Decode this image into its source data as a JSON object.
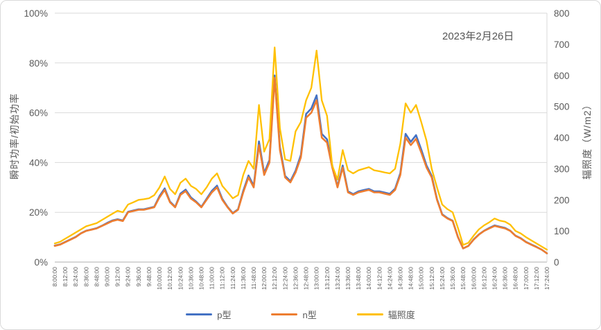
{
  "chart_data": {
    "type": "line",
    "annotation": "2023年2月26日",
    "grid": true,
    "legend_position": "bottom",
    "left_axis": {
      "title": "瞬时功率/初始功率",
      "min": 0,
      "max": 100,
      "unit": "%",
      "tick_labels": [
        "0%",
        "20%",
        "40%",
        "60%",
        "80%",
        "100%"
      ]
    },
    "right_axis": {
      "title": "辐照度（W/m2）",
      "min": 0,
      "max": 800,
      "unit": "W/m2",
      "tick_labels": [
        "0",
        "100",
        "200",
        "300",
        "400",
        "500",
        "600",
        "700",
        "800"
      ]
    },
    "x_tick_labels": [
      "8:00:00",
      "8:12:00",
      "8:24:00",
      "8:36:00",
      "8:48:00",
      "9:00:00",
      "9:12:00",
      "9:24:00",
      "9:36:00",
      "9:48:00",
      "10:00:00",
      "10:12:00",
      "10:24:00",
      "10:36:00",
      "10:48:00",
      "11:00:00",
      "11:12:00",
      "11:24:00",
      "11:36:00",
      "11:48:00",
      "12:00:00",
      "12:12:00",
      "12:24:00",
      "12:36:00",
      "12:48:00",
      "13:00:00",
      "13:12:00",
      "13:24:00",
      "13:36:00",
      "13:48:00",
      "14:00:00",
      "14:12:00",
      "14:24:00",
      "14:36:00",
      "14:48:00",
      "15:00:00",
      "15:12:00",
      "15:24:00",
      "15:36:00",
      "15:48:00",
      "16:00:00",
      "16:12:00",
      "16:24:00",
      "16:36:00",
      "16:48:00",
      "17:00:00",
      "17:12:00",
      "17:24:00"
    ],
    "x": [
      "8:00:00",
      "8:06:00",
      "8:12:00",
      "8:18:00",
      "8:24:00",
      "8:30:00",
      "8:36:00",
      "8:42:00",
      "8:48:00",
      "8:54:00",
      "9:00:00",
      "9:06:00",
      "9:12:00",
      "9:18:00",
      "9:24:00",
      "9:30:00",
      "9:36:00",
      "9:42:00",
      "9:48:00",
      "9:54:00",
      "10:00:00",
      "10:06:00",
      "10:12:00",
      "10:18:00",
      "10:24:00",
      "10:30:00",
      "10:36:00",
      "10:42:00",
      "10:48:00",
      "10:54:00",
      "11:00:00",
      "11:06:00",
      "11:12:00",
      "11:18:00",
      "11:24:00",
      "11:30:00",
      "11:36:00",
      "11:42:00",
      "11:48:00",
      "11:54:00",
      "12:00:00",
      "12:06:00",
      "12:12:00",
      "12:18:00",
      "12:24:00",
      "12:30:00",
      "12:36:00",
      "12:42:00",
      "12:48:00",
      "12:54:00",
      "13:00:00",
      "13:06:00",
      "13:12:00",
      "13:18:00",
      "13:24:00",
      "13:30:00",
      "13:36:00",
      "13:42:00",
      "13:48:00",
      "13:54:00",
      "14:00:00",
      "14:06:00",
      "14:12:00",
      "14:18:00",
      "14:24:00",
      "14:30:00",
      "14:36:00",
      "14:42:00",
      "14:48:00",
      "14:54:00",
      "15:00:00",
      "15:06:00",
      "15:12:00",
      "15:18:00",
      "15:24:00",
      "15:30:00",
      "15:36:00",
      "15:42:00",
      "15:48:00",
      "15:54:00",
      "16:00:00",
      "16:06:00",
      "16:12:00",
      "16:18:00",
      "16:24:00",
      "16:30:00",
      "16:36:00",
      "16:42:00",
      "16:48:00",
      "16:54:00",
      "17:00:00",
      "17:06:00",
      "17:12:00",
      "17:18:00",
      "17:24:00"
    ],
    "series": [
      {
        "name": "p型",
        "axis": "left",
        "unit": "%",
        "color": "#4472C4",
        "stroke_width": 2.6,
        "values": [
          6.6,
          7.1,
          8.1,
          9.1,
          10.1,
          11.6,
          12.6,
          13.1,
          13.6,
          14.6,
          15.7,
          16.7,
          17.2,
          16.7,
          20.2,
          20.7,
          21.2,
          21.2,
          21.7,
          22.2,
          26.5,
          29.6,
          24.3,
          22.2,
          27.5,
          29.1,
          26,
          24.3,
          22.2,
          25.4,
          28.6,
          30.7,
          25.4,
          22.2,
          19.7,
          21.2,
          28.6,
          34.8,
          30.6,
          48.5,
          35.7,
          41,
          75,
          46.2,
          34.6,
          32.5,
          36.7,
          43,
          59.5,
          61.7,
          67,
          51.5,
          49.3,
          38.8,
          30.4,
          38.8,
          28.4,
          27.3,
          28.4,
          28.9,
          29.4,
          28.4,
          28.4,
          27.9,
          27.4,
          29.5,
          35.7,
          51.5,
          48.3,
          51,
          45.2,
          38.8,
          34.6,
          25.3,
          19.2,
          17.7,
          16.6,
          10.1,
          5.5,
          6.5,
          9.1,
          11.1,
          12.6,
          13.7,
          14.7,
          14.2,
          13.7,
          12.6,
          10.6,
          9.6,
          8.1,
          7.1,
          6.1,
          5,
          3.5
        ]
      },
      {
        "name": "n型",
        "axis": "left",
        "unit": "%",
        "color": "#ED7D31",
        "stroke_width": 2.6,
        "values": [
          6.5,
          7,
          8,
          9,
          10,
          11.5,
          12.5,
          13,
          13.5,
          14.5,
          15.5,
          16.5,
          17,
          16.5,
          20,
          20.5,
          21,
          21,
          21.5,
          22,
          26,
          29,
          24,
          22,
          27,
          28.5,
          25.5,
          24,
          22,
          25,
          28,
          30,
          25,
          22,
          19.5,
          21,
          28,
          34,
          30,
          47,
          35,
          40,
          74,
          45,
          34,
          32,
          36,
          42,
          58,
          60,
          65,
          50,
          48,
          38,
          30,
          38,
          28,
          27,
          28,
          28.5,
          29,
          28,
          28,
          27.5,
          27,
          29,
          35,
          50,
          47,
          49.5,
          44,
          38,
          34,
          25,
          19,
          17.5,
          16.5,
          10,
          5.5,
          6.5,
          9,
          11,
          12.5,
          13.5,
          14.5,
          14,
          13.5,
          12.5,
          10.5,
          9.5,
          8,
          7,
          6,
          5,
          3.5
        ]
      },
      {
        "name": "辐照度",
        "axis": "right",
        "unit": "W/m2",
        "color": "#FFC000",
        "stroke_width": 2.3,
        "values": [
          60,
          65,
          75,
          85,
          95,
          105,
          115,
          120,
          125,
          135,
          145,
          155,
          165,
          160,
          185,
          192,
          200,
          202,
          205,
          215,
          240,
          275,
          235,
          218,
          255,
          268,
          245,
          235,
          218,
          240,
          268,
          285,
          245,
          225,
          205,
          215,
          280,
          325,
          300,
          505,
          355,
          395,
          690,
          430,
          330,
          325,
          420,
          450,
          520,
          560,
          680,
          520,
          470,
          310,
          265,
          360,
          295,
          285,
          295,
          300,
          305,
          295,
          292,
          288,
          285,
          300,
          380,
          510,
          480,
          505,
          450,
          390,
          300,
          240,
          185,
          170,
          160,
          110,
          55,
          62,
          85,
          105,
          118,
          128,
          140,
          133,
          130,
          120,
          100,
          92,
          80,
          70,
          60,
          50,
          40
        ]
      }
    ],
    "colors": {
      "gridline": "#d9d9d9",
      "axis_line": "#bfbfbf",
      "tick_text": "#595959"
    }
  }
}
